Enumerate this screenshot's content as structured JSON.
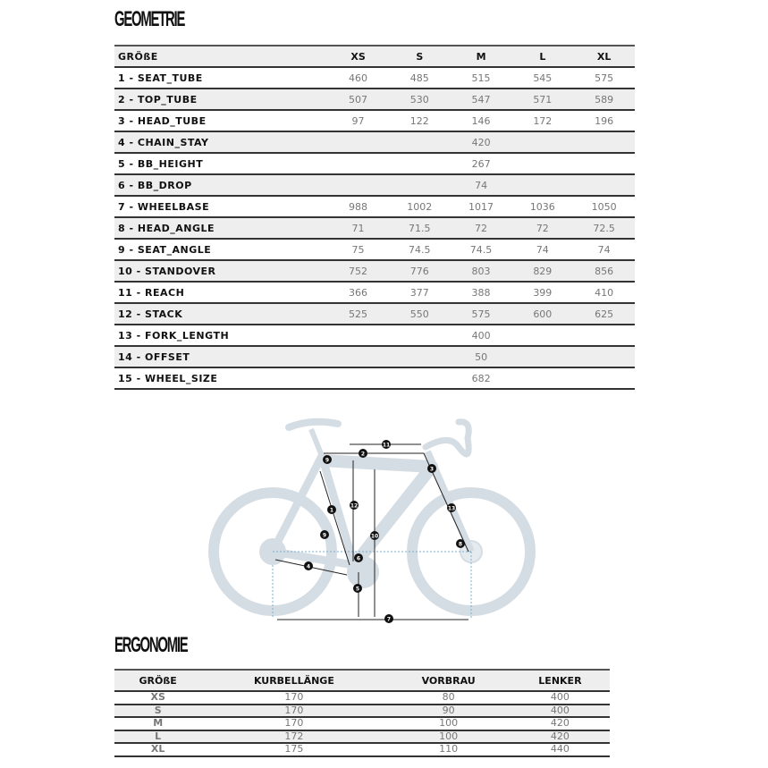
{
  "geometry": {
    "title": "GEOMETRIE",
    "headers": [
      "GRÖßE",
      "XS",
      "S",
      "M",
      "L",
      "XL"
    ],
    "rows": [
      {
        "label": "1 - SEAT_TUBE",
        "values": [
          "460",
          "485",
          "515",
          "545",
          "575"
        ]
      },
      {
        "label": "2 - TOP_TUBE",
        "values": [
          "507",
          "530",
          "547",
          "571",
          "589"
        ]
      },
      {
        "label": "3 - HEAD_TUBE",
        "values": [
          "97",
          "122",
          "146",
          "172",
          "196"
        ]
      },
      {
        "label": "4 - CHAIN_STAY",
        "all": "420"
      },
      {
        "label": "5 - BB_HEIGHT",
        "all": "267"
      },
      {
        "label": "6 - BB_DROP",
        "all": "74"
      },
      {
        "label": "7 - WHEELBASE",
        "values": [
          "988",
          "1002",
          "1017",
          "1036",
          "1050"
        ]
      },
      {
        "label": "8 - HEAD_ANGLE",
        "values": [
          "71",
          "71.5",
          "72",
          "72",
          "72.5"
        ]
      },
      {
        "label": "9 - SEAT_ANGLE",
        "values": [
          "75",
          "74.5",
          "74.5",
          "74",
          "74"
        ]
      },
      {
        "label": "10 - STANDOVER",
        "values": [
          "752",
          "776",
          "803",
          "829",
          "856"
        ]
      },
      {
        "label": "11 - REACH",
        "values": [
          "366",
          "377",
          "388",
          "399",
          "410"
        ]
      },
      {
        "label": "12 - STACK",
        "values": [
          "525",
          "550",
          "575",
          "600",
          "625"
        ]
      },
      {
        "label": "13 - FORK_LENGTH",
        "all": "400"
      },
      {
        "label": "14 - OFFSET",
        "all": "50"
      },
      {
        "label": "15 - WHEEL_SIZE",
        "all": "682"
      }
    ]
  },
  "diagram": {
    "labels": [
      "1",
      "2",
      "3",
      "4",
      "5",
      "6",
      "7",
      "8",
      "9",
      "9",
      "10",
      "11",
      "12",
      "13"
    ],
    "colors": {
      "bike": "#d5dde4",
      "lines": "#222222",
      "dotted": "#7ab0d0"
    }
  },
  "ergonomics": {
    "title": "ERGONOMIE",
    "headers": [
      "GRÖßE",
      "KURBELLÄNGE",
      "VORBRAU",
      "LENKER"
    ],
    "rows": [
      [
        "XS",
        "170",
        "80",
        "400"
      ],
      [
        "S",
        "170",
        "90",
        "400"
      ],
      [
        "M",
        "170",
        "100",
        "420"
      ],
      [
        "L",
        "172",
        "100",
        "420"
      ],
      [
        "XL",
        "175",
        "110",
        "440"
      ]
    ]
  }
}
